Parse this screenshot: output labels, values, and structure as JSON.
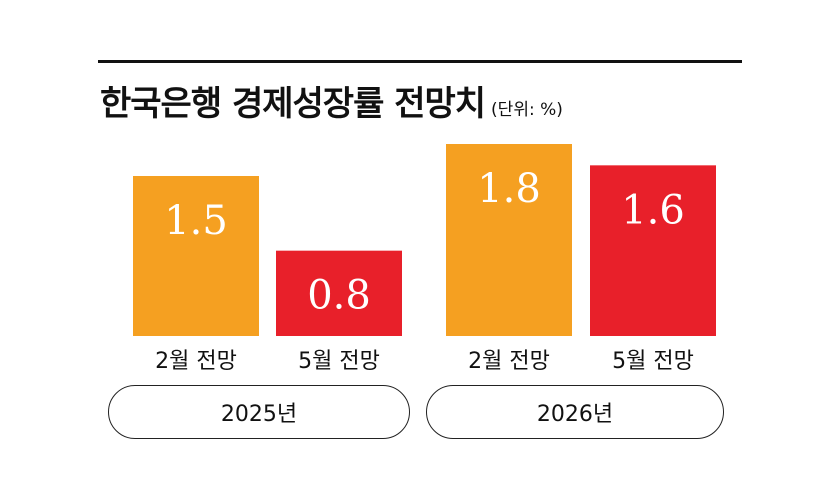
{
  "chart_data": {
    "type": "bar",
    "title": "한국은행 경제성장률 전망치",
    "unit_note": "(단위: %)",
    "groups": [
      {
        "label": "2025년",
        "bars": [
          {
            "category": "2월 전망",
            "value": 1.5,
            "value_label": "1.5",
            "color": "#F5A021"
          },
          {
            "category": "5월 전망",
            "value": 0.8,
            "value_label": "0.8",
            "color": "#E8202A"
          }
        ]
      },
      {
        "label": "2026년",
        "bars": [
          {
            "category": "2월 전망",
            "value": 1.8,
            "value_label": "1.8",
            "color": "#F5A021"
          },
          {
            "category": "5월 전망",
            "value": 1.6,
            "value_label": "1.6",
            "color": "#E8202A"
          }
        ]
      }
    ],
    "ylim": [
      0,
      1.8
    ],
    "grid": false,
    "legend": "none"
  }
}
